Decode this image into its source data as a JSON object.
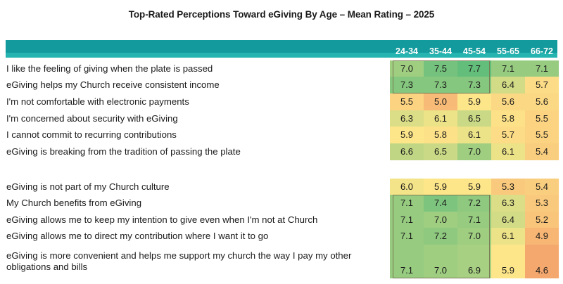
{
  "chart_data": {
    "type": "heatmap",
    "title": "Top-Rated Perceptions Toward eGiving By Age – Mean Rating – 2025",
    "columns": [
      "24-34",
      "35-44",
      "45-54",
      "55-65",
      "66-72"
    ],
    "groups": [
      {
        "rows": [
          {
            "label": "I like the feeling of giving when the plate is passed",
            "values": [
              7.0,
              7.5,
              7.7,
              7.1,
              7.1
            ]
          },
          {
            "label": "eGiving helps my Church receive consistent income",
            "values": [
              7.3,
              7.3,
              7.3,
              6.4,
              5.7
            ]
          },
          {
            "label": "I'm not comfortable with electronic payments",
            "values": [
              5.5,
              5.0,
              5.9,
              5.6,
              5.6
            ]
          },
          {
            "label": "I'm concerned about security with eGiving",
            "values": [
              6.3,
              6.1,
              6.5,
              5.8,
              5.5
            ]
          },
          {
            "label": "I cannot commit to recurring contributions",
            "values": [
              5.9,
              5.8,
              6.1,
              5.7,
              5.5
            ]
          },
          {
            "label": "eGiving is breaking from the tradition of passing the plate",
            "values": [
              6.6,
              6.5,
              7.0,
              6.1,
              5.4
            ]
          }
        ]
      },
      {
        "rows": [
          {
            "label": "eGiving is not part of my Church culture",
            "values": [
              6.0,
              5.9,
              5.9,
              5.3,
              5.4
            ]
          },
          {
            "label": "My Church benefits from eGiving",
            "values": [
              7.1,
              7.4,
              7.2,
              6.3,
              5.3
            ]
          },
          {
            "label": "eGiving allows me to keep my intention to give even when I'm not at Church",
            "values": [
              7.1,
              7.0,
              7.1,
              6.4,
              5.2
            ]
          },
          {
            "label": "eGiving allows me to direct my contribution where I want it to go",
            "values": [
              7.1,
              7.2,
              7.0,
              6.1,
              4.9
            ]
          },
          {
            "label": "eGiving is more convenient and helps me support my church the way I pay my other obligations and bills",
            "label_lines": [
              "eGiving is more convenient and helps me support my church the way I pay my other",
              "obligations and bills"
            ],
            "values": [
              7.1,
              7.0,
              6.9,
              5.9,
              4.6
            ]
          }
        ]
      }
    ],
    "color_scale": {
      "low": "#f5a86e",
      "mid": "#fde68a",
      "high": "#63be7b"
    },
    "highlight_boxes": [
      {
        "group": 0,
        "rows": [
          0,
          1
        ],
        "columns": [
          0,
          2
        ]
      },
      {
        "group": 1,
        "rows": [
          1,
          4
        ],
        "columns": [
          0,
          2
        ]
      }
    ]
  }
}
